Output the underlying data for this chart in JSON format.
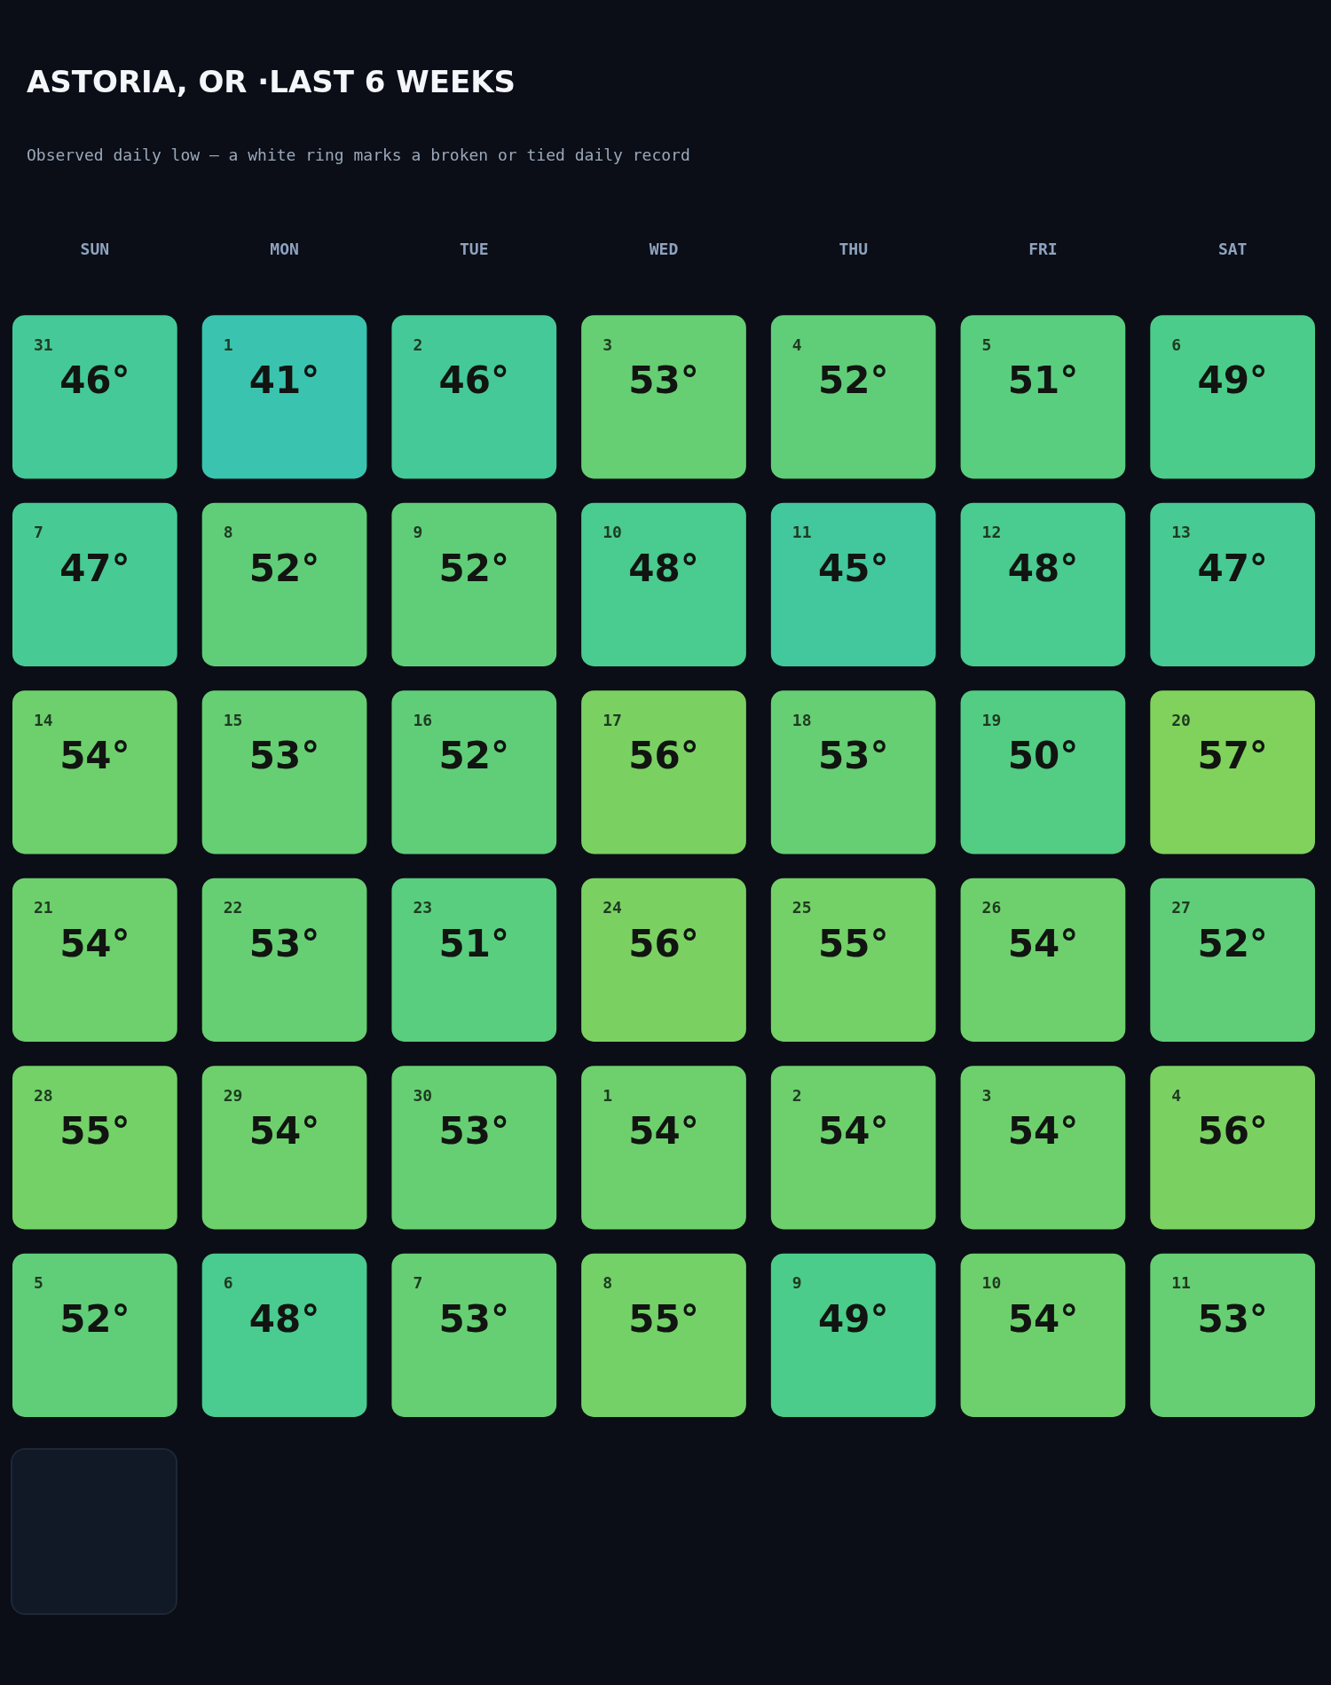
{
  "chart_data": {
    "type": "heatmap",
    "title": "ASTORIA, OR ·LAST 6 WEEKS",
    "subtitle": "Observed daily low — a white ring marks a broken or tied daily record",
    "categories": [
      "SUN",
      "MON",
      "TUE",
      "WED",
      "THU",
      "FRI",
      "SAT"
    ],
    "y_categories": [
      null,
      null,
      null,
      null,
      null,
      null
    ],
    "cells": [
      [
        46,
        41,
        46,
        53,
        52,
        51,
        49
      ],
      [
        47,
        52,
        52,
        48,
        45,
        48,
        47
      ],
      [
        54,
        53,
        52,
        56,
        53,
        50,
        57
      ],
      [
        54,
        53,
        51,
        56,
        55,
        54,
        52
      ],
      [
        55,
        54,
        53,
        54,
        54,
        54,
        56
      ],
      [
        52,
        48,
        53,
        55,
        49,
        54,
        53
      ]
    ],
    "cell_labels": [
      [
        "46°",
        "41°",
        "46°",
        "53°",
        "52°",
        "51°",
        "49°"
      ],
      [
        "47°",
        "52°",
        "52°",
        "48°",
        "45°",
        "48°",
        "47°"
      ],
      [
        "54°",
        "53°",
        "52°",
        "56°",
        "53°",
        "50°",
        "57°"
      ],
      [
        "54°",
        "53°",
        "51°",
        "56°",
        "55°",
        "54°",
        "52°"
      ],
      [
        "55°",
        "54°",
        "53°",
        "54°",
        "54°",
        "54°",
        "56°"
      ],
      [
        "52°",
        "48°",
        "53°",
        "55°",
        "49°",
        "54°",
        "53°"
      ]
    ],
    "annotations": [
      "31",
      "1",
      "2",
      "3",
      "4",
      "5",
      "6",
      "7",
      "8",
      "9",
      "10",
      "11",
      "12",
      "13",
      "14",
      "15",
      "16",
      "17",
      "18",
      "19",
      "20",
      "21",
      "22",
      "23",
      "24",
      "25",
      "26",
      "27",
      "28",
      "29",
      "30",
      "1",
      "2",
      "3",
      "4",
      "5",
      "6",
      "7",
      "8",
      "9",
      "10",
      "11"
    ]
  }
}
